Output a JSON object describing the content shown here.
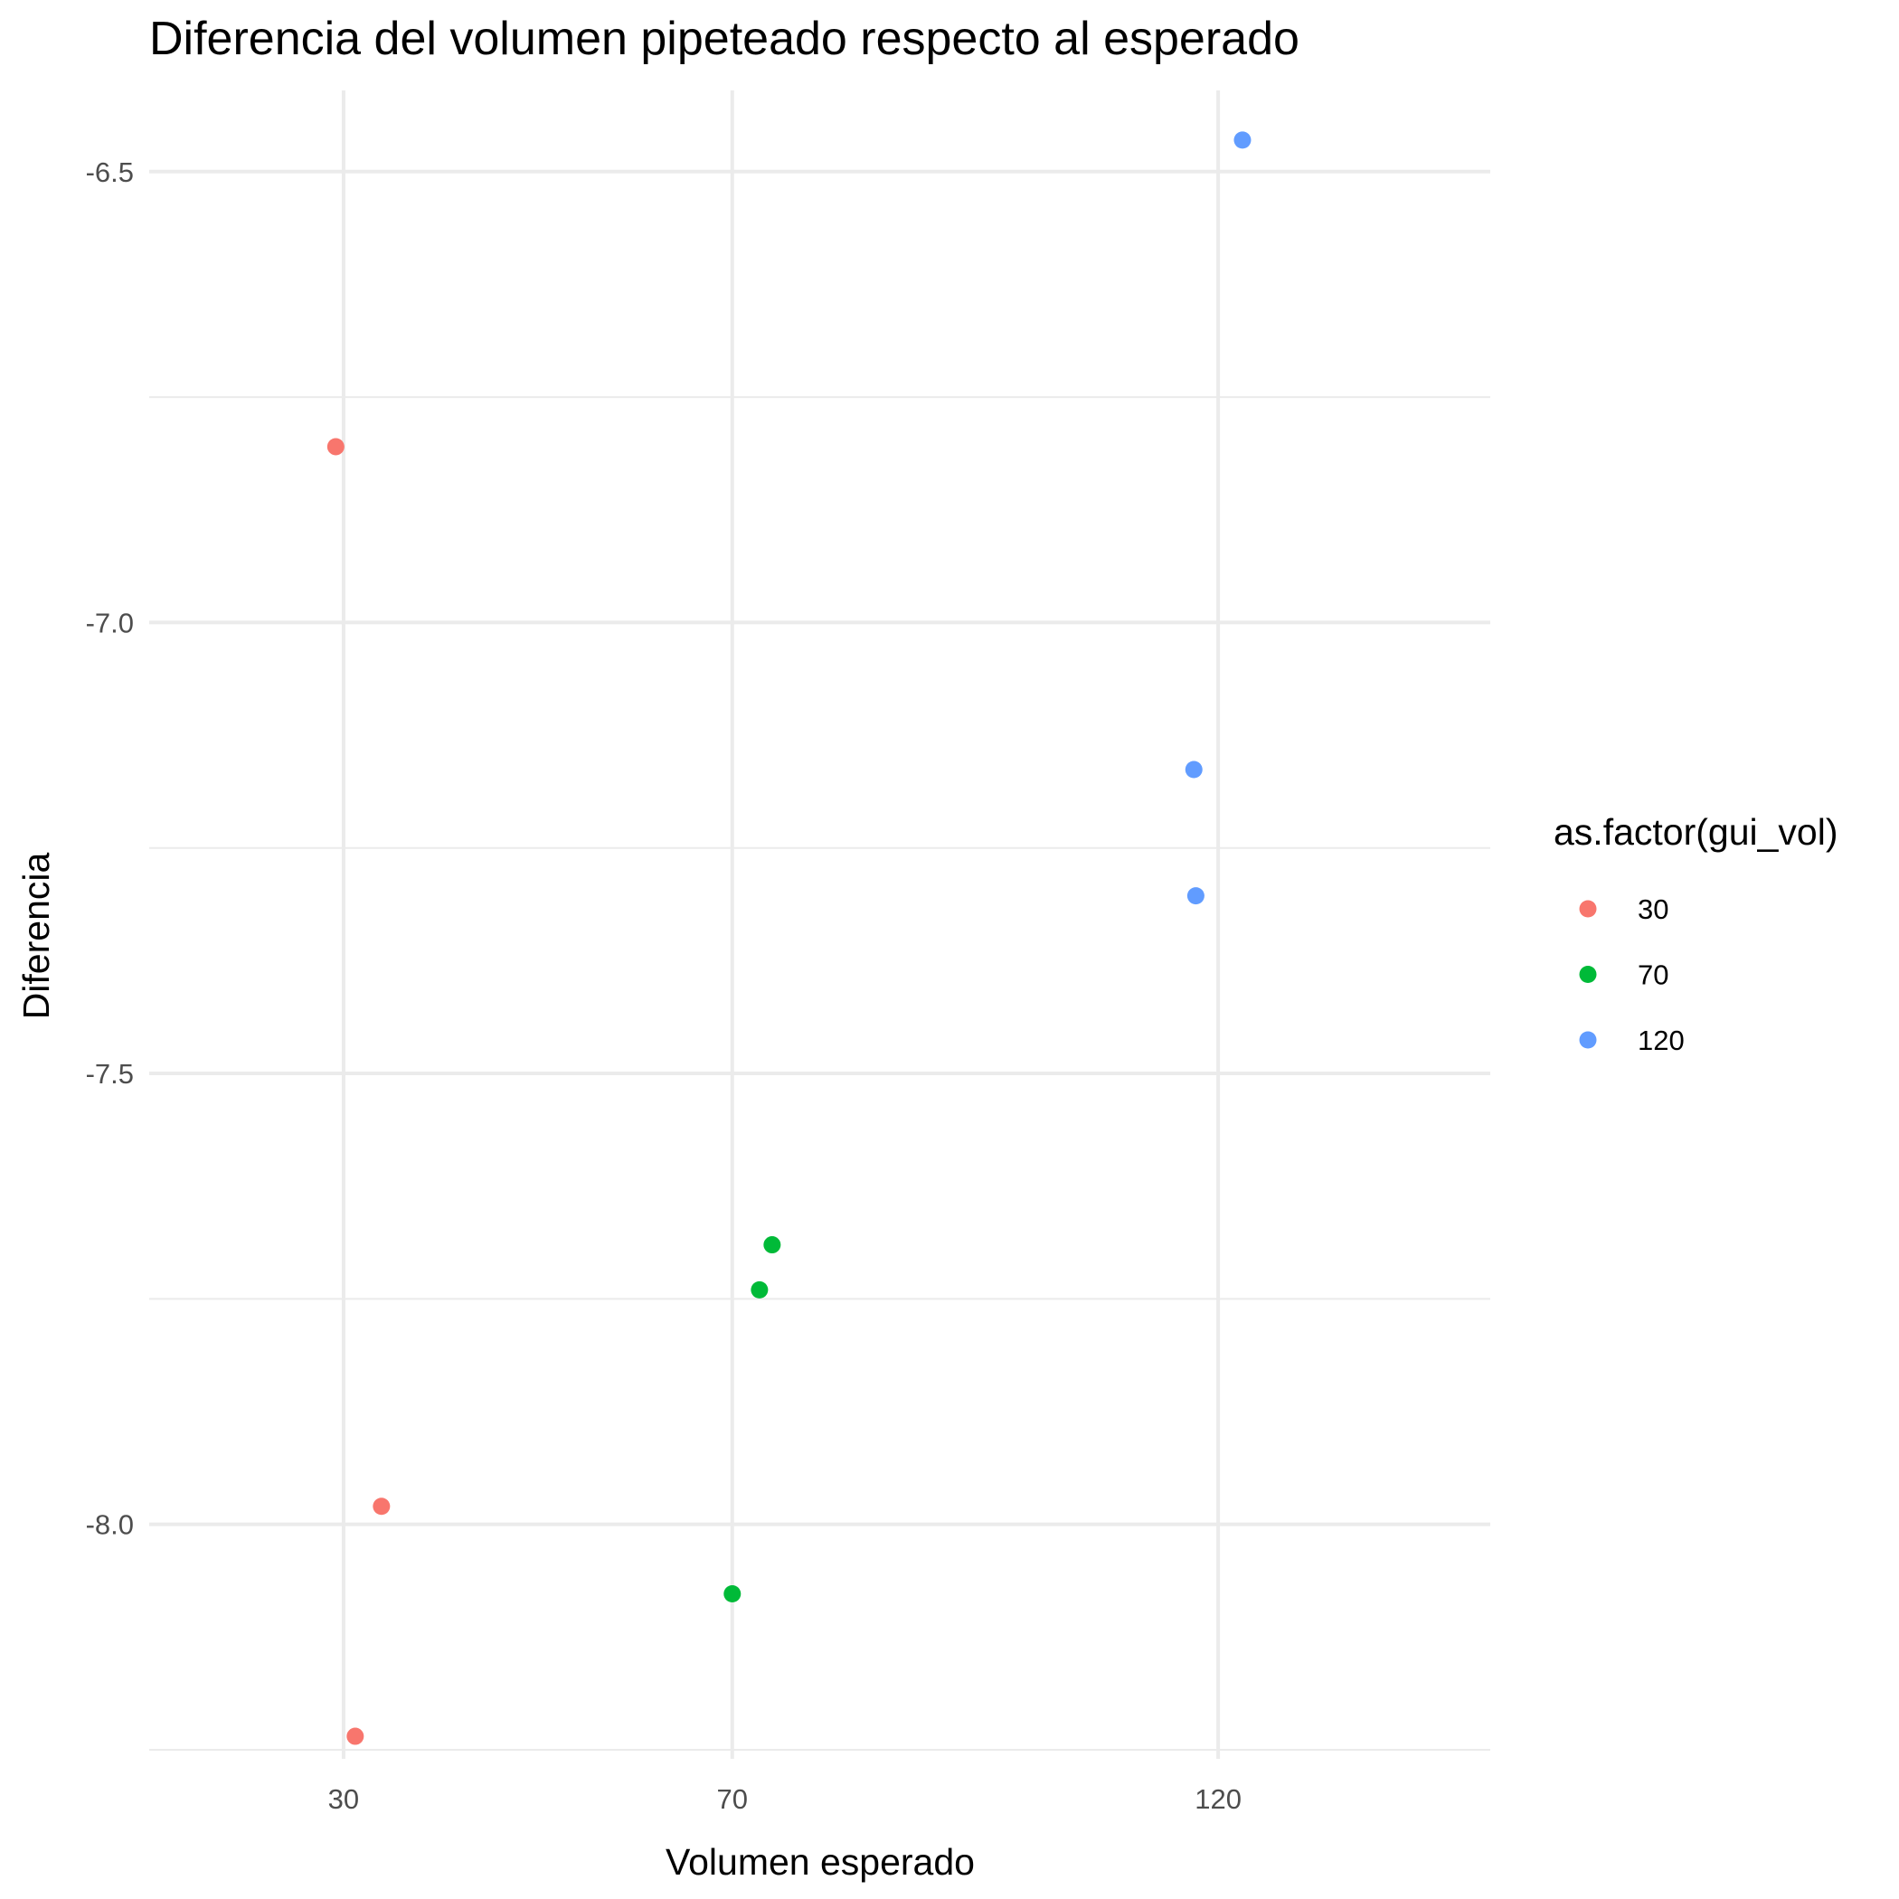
{
  "chart_data": {
    "type": "scatter",
    "title": "Diferencia del volumen pipeteado respecto al esperado",
    "xlabel": "Volumen esperado",
    "ylabel": "Diferencia",
    "xlim": [
      10,
      148
    ],
    "ylim": [
      -8.25,
      -6.43
    ],
    "x_ticks": [
      30,
      70,
      120
    ],
    "x_tick_labels": [
      "30",
      "70",
      "120"
    ],
    "x_minor": [],
    "y_ticks": [
      -8.0,
      -7.5,
      -7.0,
      -6.5
    ],
    "y_tick_labels": [
      "-8.0",
      "-7.5",
      "-7.0",
      "-6.5"
    ],
    "y_minor": [
      -8.25,
      -7.75,
      -7.25,
      -6.75
    ],
    "grid": true,
    "legend": {
      "title": "as.factor(gui_vol)",
      "position": "right",
      "entries": [
        {
          "label": "30",
          "color": "#F8766D"
        },
        {
          "label": "70",
          "color": "#00BA38"
        },
        {
          "label": "120",
          "color": "#619CFF"
        }
      ]
    },
    "series": [
      {
        "name": "30",
        "color": "#F8766D",
        "points": [
          {
            "x": 29.2,
            "y": -6.805
          },
          {
            "x": 33.9,
            "y": -7.98
          },
          {
            "x": 31.2,
            "y": -8.235
          }
        ]
      },
      {
        "name": "70",
        "color": "#00BA38",
        "points": [
          {
            "x": 74.1,
            "y": -7.69
          },
          {
            "x": 72.8,
            "y": -7.74
          },
          {
            "x": 70.0,
            "y": -8.077
          }
        ]
      },
      {
        "name": "120",
        "color": "#619CFF",
        "points": [
          {
            "x": 122.5,
            "y": -6.465
          },
          {
            "x": 117.5,
            "y": -7.163
          },
          {
            "x": 117.7,
            "y": -7.303
          }
        ]
      }
    ]
  }
}
